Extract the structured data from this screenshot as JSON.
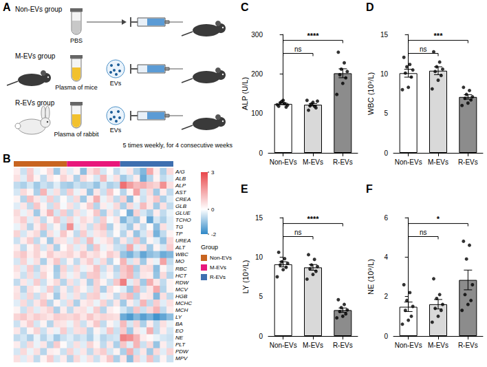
{
  "chart_data": [
    {
      "type": "diagram",
      "label": "A",
      "groups": [
        {
          "name": "Non-EVs group",
          "source": "PBS"
        },
        {
          "name": "M-EVs group",
          "source": "Plasma of mice",
          "vesicles": "EVs"
        },
        {
          "name": "R-EVs group",
          "source": "Plasma of rabbit",
          "vesicles": "EVs"
        }
      ],
      "schedule": "5 times weekly, for 4 consecutive weeks"
    },
    {
      "type": "heatmap",
      "label": "B",
      "rows": [
        "A/G",
        "ALB",
        "ALP",
        "AST",
        "CREA",
        "GLB",
        "GLUE",
        "TCHO",
        "TG",
        "TP",
        "UREA",
        "ALT",
        "WBC",
        "MO",
        "RBC",
        "HCT",
        "RDW",
        "MCV",
        "HGB",
        "MCHC",
        "MCH",
        "LY",
        "BA",
        "EO",
        "NE",
        "PLT",
        "PDW",
        "MPV"
      ],
      "legend_title": "Group",
      "groups": [
        {
          "name": "Non-EVs",
          "color": "#c8641f",
          "columns": 8
        },
        {
          "name": "M-EVs",
          "color": "#e8177b",
          "columns": 8
        },
        {
          "name": "R-EVs",
          "color": "#3e6fb0",
          "columns": 8
        }
      ],
      "colorbar": {
        "range": [
          -2,
          3
        ],
        "ticks": [
          -2,
          0,
          3
        ]
      },
      "cells": [
        [
          0.3,
          -0.5,
          0.8,
          -0.2,
          0.1,
          0.6,
          -0.9,
          0.4,
          -0.3,
          0.2,
          -1.1,
          0.5,
          0.9,
          -0.4,
          0.1,
          -0.6,
          -0.2,
          0.4,
          -0.7,
          -1.2,
          1.4,
          0.3,
          -0.8,
          0.6
        ],
        [
          0.5,
          -0.3,
          0.9,
          0.2,
          -0.6,
          0.4,
          0.1,
          0.7,
          0.3,
          -0.8,
          0.6,
          0.2,
          -0.4,
          1.1,
          -0.2,
          0.5,
          -0.9,
          -0.5,
          0.3,
          -1.4,
          -0.7,
          0.2,
          -0.6,
          -0.3
        ],
        [
          -0.6,
          -0.8,
          -0.4,
          -0.9,
          -0.5,
          -0.7,
          -0.3,
          -0.8,
          -0.9,
          -0.5,
          -0.7,
          -0.6,
          -1.0,
          -0.4,
          -0.8,
          -0.6,
          2.3,
          1.6,
          1.1,
          1.3,
          0.9,
          0.7,
          1.8,
          0.5
        ],
        [
          -0.4,
          0.6,
          0.2,
          -0.8,
          1.2,
          -0.3,
          0.5,
          -0.6,
          0.8,
          -0.2,
          0.3,
          -1.0,
          0.4,
          -0.5,
          0.9,
          0.1,
          -0.7,
          0.2,
          1.5,
          -0.4,
          0.6,
          -0.9,
          0.3,
          -0.6
        ],
        [
          0.2,
          -0.7,
          1.0,
          0.4,
          -0.3,
          0.8,
          -0.5,
          0.1,
          -0.4,
          0.6,
          -0.9,
          0.3,
          1.3,
          -0.2,
          0.5,
          -0.6,
          0.7,
          -1.1,
          0.2,
          -0.5,
          0.4,
          0.9,
          -0.8,
          -0.3
        ],
        [
          -0.3,
          0.4,
          -0.6,
          0.9,
          0.2,
          -0.5,
          0.7,
          -0.1,
          0.5,
          -0.4,
          0.2,
          0.8,
          -0.7,
          0.3,
          -0.2,
          0.6,
          -0.8,
          0.6,
          -0.3,
          1.1,
          0.4,
          -0.9,
          0.5,
          -0.6
        ],
        [
          0.6,
          -0.2,
          0.4,
          -0.9,
          0.3,
          1.2,
          -0.4,
          0.8,
          -0.6,
          0.5,
          -0.3,
          0.2,
          0.9,
          -0.8,
          0.4,
          -0.5,
          0.1,
          -1.3,
          0.7,
          -0.4,
          -0.8,
          0.3,
          -0.6,
          -0.2
        ],
        [
          0.4,
          0.8,
          -0.3,
          0.5,
          -0.6,
          0.2,
          0.9,
          -0.4,
          0.7,
          -0.2,
          0.6,
          0.3,
          -0.5,
          0.8,
          -0.1,
          0.4,
          -1.2,
          -0.6,
          -0.9,
          0.2,
          -1.5,
          -0.4,
          -0.8,
          -0.3
        ],
        [
          -0.2,
          0.5,
          -0.7,
          0.3,
          0.9,
          -0.4,
          0.2,
          -0.6,
          1.8,
          -0.3,
          0.4,
          -0.5,
          0.6,
          1.0,
          -0.8,
          0.2,
          -0.4,
          -0.9,
          0.3,
          -0.6,
          0.1,
          -1.1,
          0.5,
          -0.3
        ],
        [
          0.7,
          -0.4,
          0.3,
          0.6,
          -0.8,
          0.5,
          -0.2,
          0.9,
          0.2,
          -0.6,
          0.8,
          -0.3,
          0.4,
          0.6,
          -0.5,
          0.1,
          -0.7,
          0.3,
          -1.0,
          -0.4,
          0.5,
          -1.3,
          -0.6,
          0.2
        ],
        [
          -0.5,
          0.3,
          0.8,
          -0.6,
          0.2,
          -0.9,
          0.5,
          0.4,
          -0.3,
          0.7,
          -0.4,
          1.1,
          -0.2,
          0.3,
          0.6,
          -0.7,
          0.4,
          -0.5,
          0.9,
          -0.8,
          0.2,
          -0.3,
          -1.0,
          0.6
        ],
        [
          0.3,
          -0.6,
          0.2,
          0.7,
          -0.4,
          0.5,
          -0.8,
          0.1,
          0.6,
          -0.3,
          0.4,
          -0.7,
          0.9,
          -0.2,
          0.3,
          -0.5,
          -0.6,
          1.4,
          -0.3,
          0.5,
          -0.9,
          0.2,
          -0.4,
          0.8
        ],
        [
          0.6,
          0.9,
          0.3,
          0.7,
          0.2,
          0.8,
          0.4,
          0.5,
          0.7,
          0.3,
          0.9,
          0.4,
          0.6,
          0.2,
          0.8,
          0.5,
          -1.0,
          -1.3,
          -0.8,
          -1.5,
          -1.1,
          -0.9,
          -1.4,
          -1.2
        ],
        [
          -0.4,
          0.7,
          -0.2,
          0.5,
          -0.8,
          0.3,
          0.9,
          -0.5,
          0.2,
          -0.6,
          0.4,
          0.8,
          -0.3,
          0.6,
          -0.7,
          0.1,
          1.2,
          -0.4,
          0.5,
          -0.9,
          0.3,
          -0.2,
          1.5,
          -0.6
        ],
        [
          0.5,
          -0.3,
          0.8,
          -0.6,
          0.4,
          0.2,
          -0.9,
          0.7,
          -0.4,
          0.6,
          -0.2,
          0.3,
          1.0,
          -0.5,
          0.4,
          -0.7,
          0.9,
          1.3,
          -0.8,
          0.5,
          0.6,
          -1.1,
          0.2,
          -0.4
        ],
        [
          0.3,
          -0.5,
          0.6,
          -0.4,
          0.7,
          0.1,
          -0.8,
          0.5,
          -0.2,
          0.4,
          -0.6,
          0.8,
          0.9,
          -0.3,
          0.2,
          -0.5,
          0.8,
          1.2,
          -0.6,
          0.4,
          0.3,
          -1.0,
          0.6,
          -0.7
        ],
        [
          -0.6,
          0.4,
          -0.3,
          0.8,
          -0.5,
          0.2,
          0.6,
          -0.7,
          0.5,
          -0.4,
          0.3,
          -0.8,
          0.7,
          0.2,
          -0.5,
          0.9,
          2.1,
          -0.3,
          0.6,
          -0.9,
          1.3,
          0.4,
          -0.6,
          0.2
        ],
        [
          0.4,
          -0.7,
          0.5,
          0.2,
          -0.3,
          0.8,
          -0.6,
          0.3,
          -0.5,
          0.6,
          0.2,
          -0.4,
          0.7,
          -0.8,
          0.5,
          0.1,
          -0.3,
          -0.9,
          1.1,
          -0.5,
          0.4,
          1.4,
          -0.7,
          0.2
        ],
        [
          0.5,
          -0.4,
          0.7,
          -0.5,
          0.6,
          0.2,
          -0.9,
          0.4,
          -0.3,
          0.5,
          -0.5,
          0.7,
          0.8,
          -0.2,
          0.3,
          -0.6,
          0.7,
          1.1,
          -0.7,
          0.3,
          0.4,
          -1.2,
          0.5,
          -0.6
        ],
        [
          -0.3,
          0.6,
          -0.5,
          0.4,
          0.9,
          -0.7,
          0.2,
          -0.4,
          0.6,
          -0.8,
          0.3,
          0.5,
          -0.2,
          0.7,
          -0.6,
          0.4,
          -0.9,
          0.3,
          -0.4,
          1.2,
          -0.6,
          0.8,
          -0.3,
          0.5
        ],
        [
          0.2,
          -0.5,
          0.6,
          -0.3,
          0.4,
          0.7,
          -0.8,
          0.3,
          -0.6,
          0.4,
          0.5,
          -0.2,
          0.8,
          -0.7,
          0.3,
          0.1,
          -0.4,
          -0.8,
          0.9,
          -0.5,
          0.6,
          1.2,
          -0.6,
          0.3
        ],
        [
          0.7,
          0.9,
          0.5,
          0.8,
          0.6,
          0.4,
          0.8,
          0.7,
          0.6,
          0.8,
          0.4,
          0.9,
          0.5,
          0.7,
          0.6,
          0.5,
          -1.4,
          -1.7,
          -1.2,
          -1.6,
          -1.3,
          -1.8,
          -1.5,
          -1.1
        ],
        [
          -0.5,
          0.3,
          0.8,
          -0.4,
          0.2,
          -0.7,
          0.5,
          0.4,
          -0.2,
          0.6,
          -0.5,
          0.3,
          0.9,
          -0.6,
          0.2,
          -0.3,
          1.1,
          -0.4,
          0.7,
          -0.8,
          0.3,
          -0.6,
          0.5,
          -0.2
        ],
        [
          0.4,
          -0.6,
          0.2,
          0.7,
          -0.5,
          0.3,
          -0.2,
          0.8,
          -0.4,
          0.5,
          0.6,
          -0.7,
          0.2,
          -0.3,
          0.9,
          -0.5,
          0.8,
          -0.9,
          0.4,
          -0.2,
          1.3,
          -0.6,
          0.3,
          -0.4
        ],
        [
          -0.6,
          -0.4,
          -0.8,
          -0.2,
          -0.7,
          -0.3,
          -0.9,
          -0.5,
          -0.3,
          -0.6,
          -0.4,
          -0.8,
          -0.2,
          -0.7,
          -0.5,
          -0.4,
          2.0,
          1.8,
          1.2,
          0.3,
          0.1,
          -0.2,
          -0.4,
          -0.5
        ],
        [
          0.3,
          -0.5,
          0.6,
          -0.2,
          0.4,
          -0.7,
          0.8,
          0.1,
          -0.4,
          0.5,
          -0.3,
          0.7,
          0.2,
          -0.6,
          0.4,
          -0.8,
          0.9,
          -0.3,
          1.2,
          -0.5,
          0.6,
          -1.0,
          0.3,
          -0.4
        ],
        [
          -0.4,
          0.6,
          -0.2,
          0.5,
          -0.7,
          0.3,
          0.2,
          -0.5,
          0.7,
          -0.3,
          0.4,
          -0.6,
          0.5,
          0.8,
          -0.4,
          0.2,
          -0.8,
          1.3,
          -0.5,
          0.4,
          -0.9,
          0.6,
          -0.3,
          0.7
        ],
        [
          0.5,
          -0.3,
          0.4,
          -0.6,
          0.2,
          0.8,
          -0.4,
          0.3,
          -0.7,
          0.6,
          -0.2,
          0.5,
          -0.5,
          0.3,
          0.9,
          -0.8,
          0.4,
          -1.1,
          0.7,
          -0.3,
          1.0,
          -0.6,
          0.2,
          -0.5
        ]
      ]
    },
    {
      "type": "bar",
      "label": "C",
      "y_label": "ALP (U/L)",
      "categories": [
        "Non-EVs",
        "M-EVs",
        "R-EVs"
      ],
      "values": [
        124,
        121.9,
        201.6
      ],
      "errors": [
        2.1,
        3.0,
        11.3
      ],
      "points": [
        [
          118,
          125,
          130,
          121,
          127,
          116,
          133,
          122
        ],
        [
          108,
          118,
          124,
          131,
          119,
          114,
          128,
          133
        ],
        [
          255,
          228,
          212,
          206,
          198,
          190,
          176,
          148
        ]
      ],
      "colors": [
        "#ffffff",
        "#d9d9d9",
        "#8c8c8c"
      ],
      "ylim": [
        0,
        300
      ],
      "yticks": [
        0,
        100,
        200,
        300
      ],
      "comparisons": [
        {
          "from": "Non-EVs",
          "to": "M-EVs",
          "label": "ns"
        },
        {
          "from": "Non-EVs",
          "to": "R-EVs",
          "label": "****"
        }
      ]
    },
    {
      "type": "bar",
      "label": "D",
      "y_label": "WBC (10⁹/L)",
      "categories": [
        "Non-EVs",
        "M-EVs",
        "R-EVs"
      ],
      "values": [
        10.09,
        10.4,
        7.08
      ],
      "errors": [
        0.5,
        0.5,
        0.28
      ],
      "points": [
        [
          12.1,
          11.2,
          10.9,
          10.5,
          10.1,
          9.6,
          8.3,
          8.0
        ],
        [
          12.8,
          11.5,
          10.9,
          10.6,
          10.3,
          9.8,
          9.2,
          8.1
        ],
        [
          8.3,
          7.9,
          7.4,
          7.1,
          6.9,
          6.7,
          6.3,
          6.0
        ]
      ],
      "colors": [
        "#ffffff",
        "#d9d9d9",
        "#8c8c8c"
      ],
      "ylim": [
        0,
        15
      ],
      "yticks": [
        0,
        5,
        10,
        15
      ],
      "comparisons": [
        {
          "from": "Non-EVs",
          "to": "M-EVs",
          "label": "ns"
        },
        {
          "from": "Non-EVs",
          "to": "R-EVs",
          "label": "***"
        }
      ]
    },
    {
      "type": "bar",
      "label": "E",
      "y_label": "LY (10⁹/L)",
      "categories": [
        "Non-EVs",
        "M-EVs",
        "R-EVs"
      ],
      "values": [
        9.08,
        8.69,
        3.28
      ],
      "errors": [
        0.33,
        0.36,
        0.27
      ],
      "points": [
        [
          10.6,
          9.8,
          9.4,
          9.2,
          9.0,
          8.7,
          8.4,
          7.5
        ],
        [
          10.3,
          9.7,
          9.0,
          8.8,
          8.5,
          8.2,
          7.8,
          7.2
        ],
        [
          4.6,
          4.0,
          3.6,
          3.3,
          3.1,
          2.8,
          2.5,
          2.3
        ]
      ],
      "colors": [
        "#ffffff",
        "#d9d9d9",
        "#8c8c8c"
      ],
      "ylim": [
        0,
        15
      ],
      "yticks": [
        0,
        5,
        10,
        15
      ],
      "comparisons": [
        {
          "from": "Non-EVs",
          "to": "M-EVs",
          "label": "ns"
        },
        {
          "from": "Non-EVs",
          "to": "R-EVs",
          "label": "****"
        }
      ]
    },
    {
      "type": "bar",
      "label": "F",
      "y_label": "NE (10⁹/L)",
      "categories": [
        "Non-EVs",
        "M-EVs",
        "R-EVs"
      ],
      "values": [
        1.48,
        1.61,
        2.84
      ],
      "errors": [
        0.24,
        0.24,
        0.5
      ],
      "points": [
        [
          2.6,
          2.2,
          1.8,
          1.5,
          1.3,
          1.0,
          0.8,
          0.6
        ],
        [
          2.9,
          2.1,
          1.9,
          1.6,
          1.4,
          1.3,
          1.0,
          0.7
        ],
        [
          4.8,
          4.6,
          3.9,
          2.6,
          2.1,
          1.8,
          1.6,
          1.3
        ]
      ],
      "colors": [
        "#ffffff",
        "#d9d9d9",
        "#8c8c8c"
      ],
      "ylim": [
        0,
        6
      ],
      "yticks": [
        0,
        2,
        4,
        6
      ],
      "comparisons": [
        {
          "from": "Non-EVs",
          "to": "M-EVs",
          "label": "ns"
        },
        {
          "from": "Non-EVs",
          "to": "R-EVs",
          "label": "*"
        }
      ]
    }
  ]
}
